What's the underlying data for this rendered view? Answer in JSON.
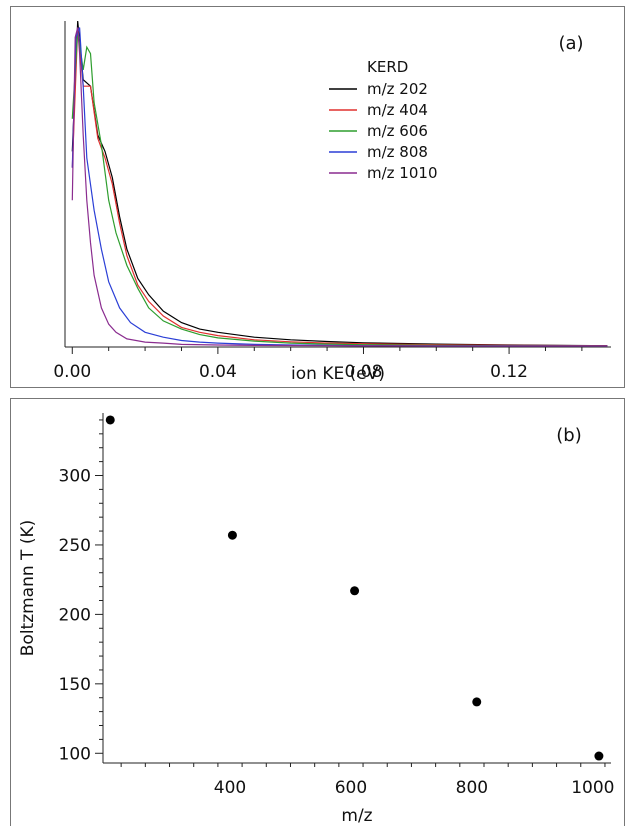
{
  "chart_data": [
    {
      "type": "line",
      "panel_label": "(a)",
      "title": "",
      "xlabel": "ion KE (eV)",
      "ylabel": "",
      "xlim": [
        -0.002,
        0.148
      ],
      "ylim": [
        0,
        1.0
      ],
      "xticks": [
        0.0,
        0.04,
        0.08,
        0.12
      ],
      "xtick_labels": [
        "0.00",
        "0.04",
        "0.08",
        "0.12"
      ],
      "y_ticks_shown": false,
      "grid": false,
      "legend": {
        "title": "KERD",
        "placement": "top-right",
        "entries": [
          "m/z 202",
          "m/z 404",
          "m/z 606",
          "m/z 808",
          "m/z 1010"
        ]
      },
      "series": [
        {
          "name": "m/z 202",
          "color": "#000000",
          "x": [
            0,
            0.0015,
            0.003,
            0.005,
            0.007,
            0.009,
            0.011,
            0.013,
            0.015,
            0.018,
            0.021,
            0.025,
            0.03,
            0.035,
            0.04,
            0.05,
            0.06,
            0.07,
            0.08,
            0.1,
            0.12,
            0.147
          ],
          "y": [
            0.6,
            1.0,
            0.82,
            0.8,
            0.65,
            0.6,
            0.52,
            0.4,
            0.3,
            0.21,
            0.16,
            0.11,
            0.075,
            0.055,
            0.045,
            0.03,
            0.022,
            0.017,
            0.013,
            0.009,
            0.006,
            0.004
          ]
        },
        {
          "name": "m/z 404",
          "color": "#e0302f",
          "x": [
            0,
            0.0015,
            0.003,
            0.005,
            0.007,
            0.009,
            0.011,
            0.013,
            0.015,
            0.018,
            0.021,
            0.025,
            0.03,
            0.035,
            0.04,
            0.05,
            0.06,
            0.07,
            0.08,
            0.1,
            0.12,
            0.147
          ],
          "y": [
            0.55,
            0.98,
            0.8,
            0.8,
            0.64,
            0.58,
            0.5,
            0.38,
            0.28,
            0.19,
            0.14,
            0.095,
            0.06,
            0.045,
            0.035,
            0.022,
            0.016,
            0.012,
            0.01,
            0.007,
            0.005,
            0.004
          ]
        },
        {
          "name": "m/z 606",
          "color": "#2e9e2e",
          "x": [
            0,
            0.0015,
            0.003,
            0.004,
            0.005,
            0.006,
            0.008,
            0.01,
            0.012,
            0.015,
            0.018,
            0.021,
            0.025,
            0.03,
            0.035,
            0.04,
            0.05,
            0.06,
            0.07,
            0.08,
            0.1,
            0.12,
            0.147
          ],
          "y": [
            0.7,
            0.97,
            0.85,
            0.92,
            0.9,
            0.75,
            0.62,
            0.45,
            0.35,
            0.25,
            0.18,
            0.12,
            0.08,
            0.055,
            0.038,
            0.028,
            0.018,
            0.012,
            0.009,
            0.007,
            0.005,
            0.004,
            0.003
          ]
        },
        {
          "name": "m/z 808",
          "color": "#2b3fd6",
          "x": [
            0,
            0.001,
            0.002,
            0.003,
            0.004,
            0.006,
            0.008,
            0.01,
            0.013,
            0.016,
            0.02,
            0.025,
            0.03,
            0.035,
            0.04,
            0.05,
            0.06,
            0.08,
            0.1,
            0.147
          ],
          "y": [
            0.55,
            0.95,
            0.98,
            0.8,
            0.58,
            0.42,
            0.3,
            0.2,
            0.12,
            0.075,
            0.045,
            0.03,
            0.02,
            0.015,
            0.012,
            0.008,
            0.006,
            0.004,
            0.003,
            0.003
          ]
        },
        {
          "name": "m/z 1010",
          "color": "#8a2c8f",
          "x": [
            0,
            0.0008,
            0.0015,
            0.002,
            0.003,
            0.004,
            0.005,
            0.006,
            0.008,
            0.01,
            0.012,
            0.015,
            0.02,
            0.025,
            0.03,
            0.04,
            0.05,
            0.07,
            0.1,
            0.147
          ],
          "y": [
            0.45,
            0.95,
            0.98,
            0.9,
            0.65,
            0.45,
            0.32,
            0.22,
            0.12,
            0.07,
            0.045,
            0.025,
            0.015,
            0.012,
            0.008,
            0.006,
            0.005,
            0.004,
            0.003,
            0.003
          ]
        }
      ]
    },
    {
      "type": "scatter",
      "panel_label": "(b)",
      "title": "",
      "xlabel": "m/z",
      "ylabel": "Boltzmann T (K)",
      "xlim": [
        190,
        1030
      ],
      "ylim": [
        93,
        345
      ],
      "xticks": [
        400,
        600,
        800,
        1000
      ],
      "xtick_labels": [
        "400",
        "600",
        "800",
        "1000"
      ],
      "yticks": [
        100,
        150,
        200,
        250,
        300
      ],
      "ytick_labels": [
        "100",
        "150",
        "200",
        "250",
        "300"
      ],
      "grid": false,
      "legend": null,
      "marker_color": "#000000",
      "x": [
        202,
        404,
        606,
        808,
        1010
      ],
      "y": [
        340,
        257,
        217,
        137,
        98
      ]
    }
  ]
}
